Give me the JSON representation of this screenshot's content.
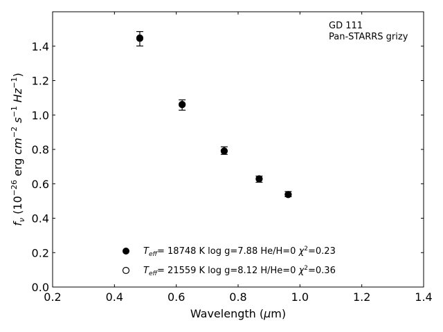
{
  "chart_data": {
    "type": "scatter",
    "xlabel": "Wavelength (μm)",
    "ylabel": "f_ν (10^-26 erg cm^-2 s^-1 Hz^-1)",
    "xlim": [
      0.2,
      1.4
    ],
    "ylim": [
      0.0,
      1.6
    ],
    "xticks": [
      "0.2",
      "0.4",
      "0.6",
      "0.8",
      "1.0",
      "1.2",
      "1.4"
    ],
    "yticks": [
      "0.0",
      "0.2",
      "0.4",
      "0.6",
      "0.8",
      "1.0",
      "1.2",
      "1.4"
    ],
    "grid": false,
    "annotation": [
      "GD 111",
      "Pan-STARRS grizy"
    ],
    "observed": {
      "x": [
        0.482,
        0.619,
        0.755,
        0.868,
        0.962
      ],
      "y": [
        1.443,
        1.058,
        0.793,
        0.627,
        0.54
      ],
      "yerr": [
        0.042,
        0.03,
        0.022,
        0.018,
        0.015
      ]
    },
    "model_filled": {
      "x": [
        0.482,
        0.619,
        0.755,
        0.868,
        0.962
      ],
      "y": [
        1.448,
        1.062,
        0.79,
        0.628,
        0.537
      ]
    },
    "model_open": {
      "x": [
        0.482,
        0.619,
        0.755,
        0.868,
        0.962
      ],
      "y": [
        1.445,
        1.06,
        0.791,
        0.629,
        0.538
      ]
    },
    "legend": [
      {
        "marker": "filled",
        "label": "T_eff= 18748 K  log g=7.88  He/H=0  χ²=0.23"
      },
      {
        "marker": "open",
        "label": "T_eff= 21559 K  log g=8.12  H/He=0  χ²=0.36"
      }
    ]
  }
}
